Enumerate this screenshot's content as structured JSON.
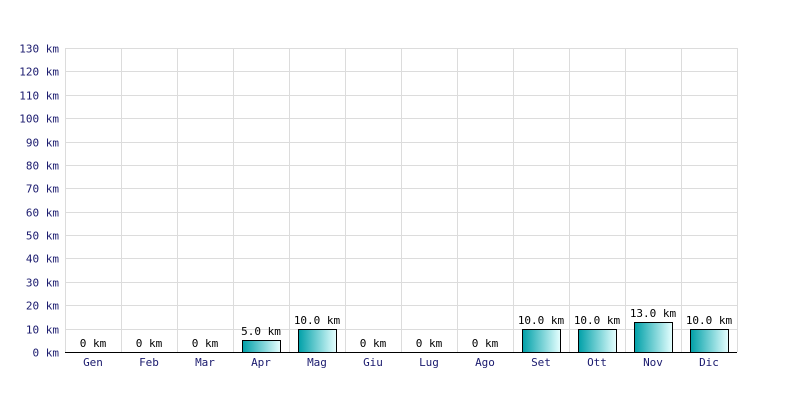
{
  "chart_data": {
    "type": "bar",
    "title": "",
    "xlabel": "",
    "ylabel": "",
    "unit": "km",
    "categories": [
      "Gen",
      "Feb",
      "Mar",
      "Apr",
      "Mag",
      "Giu",
      "Lug",
      "Ago",
      "Set",
      "Ott",
      "Nov",
      "Dic"
    ],
    "values": [
      0,
      0,
      0,
      5.0,
      10.0,
      0,
      0,
      0,
      10.0,
      10.0,
      13.0,
      10.0
    ],
    "data_labels": [
      "0 km",
      "0 km",
      "0 km",
      "5.0 km",
      "10.0 km",
      "0 km",
      "0 km",
      "0 km",
      "10.0 km",
      "10.0 km",
      "13.0 km",
      "10.0 km"
    ],
    "ylim": [
      0,
      130
    ],
    "y_ticks": [
      0,
      10,
      20,
      30,
      40,
      50,
      60,
      70,
      80,
      90,
      100,
      110,
      120,
      130
    ],
    "y_tick_labels": [
      "0 km",
      "10 km",
      "20 km",
      "30 km",
      "40 km",
      "50 km",
      "60 km",
      "70 km",
      "80 km",
      "90 km",
      "100 km",
      "110 km",
      "120 km",
      "130 km"
    ],
    "grid": true,
    "legend": "none",
    "colors": {
      "bar_dark": "#00a0a8",
      "bar_light": "#e6ffff",
      "grid": "#dcdcdc",
      "axis_text": "#1a1a6e"
    }
  }
}
